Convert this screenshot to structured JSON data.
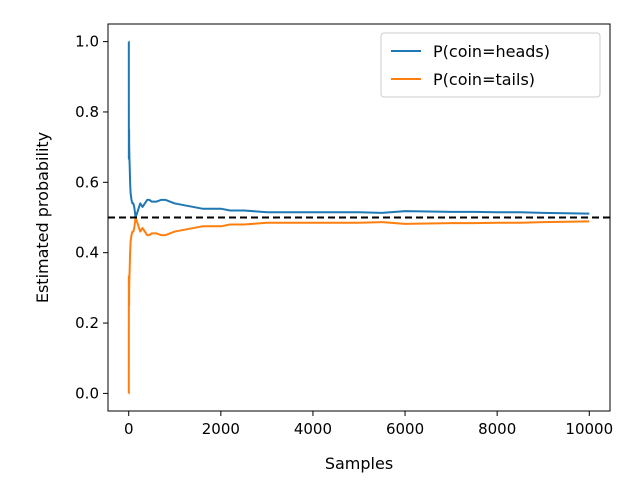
{
  "chart_data": {
    "type": "line",
    "xlabel": "Samples",
    "ylabel": "Estimated probability",
    "xlim": [
      -450,
      10450
    ],
    "ylim": [
      -0.05,
      1.05
    ],
    "xticks": [
      0,
      2000,
      4000,
      6000,
      8000,
      10000
    ],
    "xtick_labels": [
      "0",
      "2000",
      "4000",
      "6000",
      "8000",
      "10000"
    ],
    "yticks": [
      0.0,
      0.2,
      0.4,
      0.6,
      0.8,
      1.0
    ],
    "ytick_labels": [
      "0.0",
      "0.2",
      "0.4",
      "0.6",
      "0.8",
      "1.0"
    ],
    "grid": false,
    "legend_position": "top-right",
    "reference_line": {
      "y": 0.5,
      "style": "dashed",
      "color": "#000000"
    },
    "series": [
      {
        "name": "P(coin=heads)",
        "color": "#1f77b4",
        "x": [
          1,
          2,
          3,
          4,
          6,
          8,
          10,
          15,
          20,
          30,
          40,
          50,
          60,
          80,
          100,
          120,
          150,
          200,
          250,
          300,
          350,
          400,
          450,
          500,
          600,
          700,
          800,
          900,
          1000,
          1200,
          1400,
          1600,
          1800,
          2000,
          2200,
          2500,
          3000,
          3500,
          4000,
          4500,
          5000,
          5500,
          6000,
          6500,
          7000,
          7500,
          8000,
          8500,
          9000,
          9500,
          10000
        ],
        "values": [
          1.0,
          1.0,
          0.667,
          0.75,
          0.667,
          0.75,
          0.7,
          0.667,
          0.65,
          0.6,
          0.57,
          0.56,
          0.55,
          0.54,
          0.54,
          0.53,
          0.5,
          0.52,
          0.54,
          0.53,
          0.54,
          0.55,
          0.55,
          0.545,
          0.545,
          0.55,
          0.55,
          0.545,
          0.54,
          0.535,
          0.53,
          0.525,
          0.525,
          0.525,
          0.52,
          0.52,
          0.515,
          0.515,
          0.515,
          0.515,
          0.515,
          0.513,
          0.518,
          0.517,
          0.516,
          0.516,
          0.515,
          0.515,
          0.513,
          0.512,
          0.511
        ]
      },
      {
        "name": "P(coin=tails)",
        "color": "#ff7f0e",
        "x": [
          1,
          2,
          3,
          4,
          6,
          8,
          10,
          15,
          20,
          30,
          40,
          50,
          60,
          80,
          100,
          120,
          150,
          200,
          250,
          300,
          350,
          400,
          450,
          500,
          600,
          700,
          800,
          900,
          1000,
          1200,
          1400,
          1600,
          1800,
          2000,
          2200,
          2500,
          3000,
          3500,
          4000,
          4500,
          5000,
          5500,
          6000,
          6500,
          7000,
          7500,
          8000,
          8500,
          9000,
          9500,
          10000
        ],
        "values": [
          0.0,
          0.0,
          0.333,
          0.25,
          0.333,
          0.25,
          0.3,
          0.333,
          0.35,
          0.4,
          0.43,
          0.44,
          0.45,
          0.46,
          0.46,
          0.47,
          0.5,
          0.48,
          0.46,
          0.47,
          0.46,
          0.45,
          0.45,
          0.455,
          0.455,
          0.45,
          0.45,
          0.455,
          0.46,
          0.465,
          0.47,
          0.475,
          0.475,
          0.475,
          0.48,
          0.48,
          0.485,
          0.485,
          0.485,
          0.485,
          0.485,
          0.487,
          0.482,
          0.483,
          0.484,
          0.484,
          0.485,
          0.485,
          0.487,
          0.488,
          0.489
        ]
      }
    ]
  }
}
